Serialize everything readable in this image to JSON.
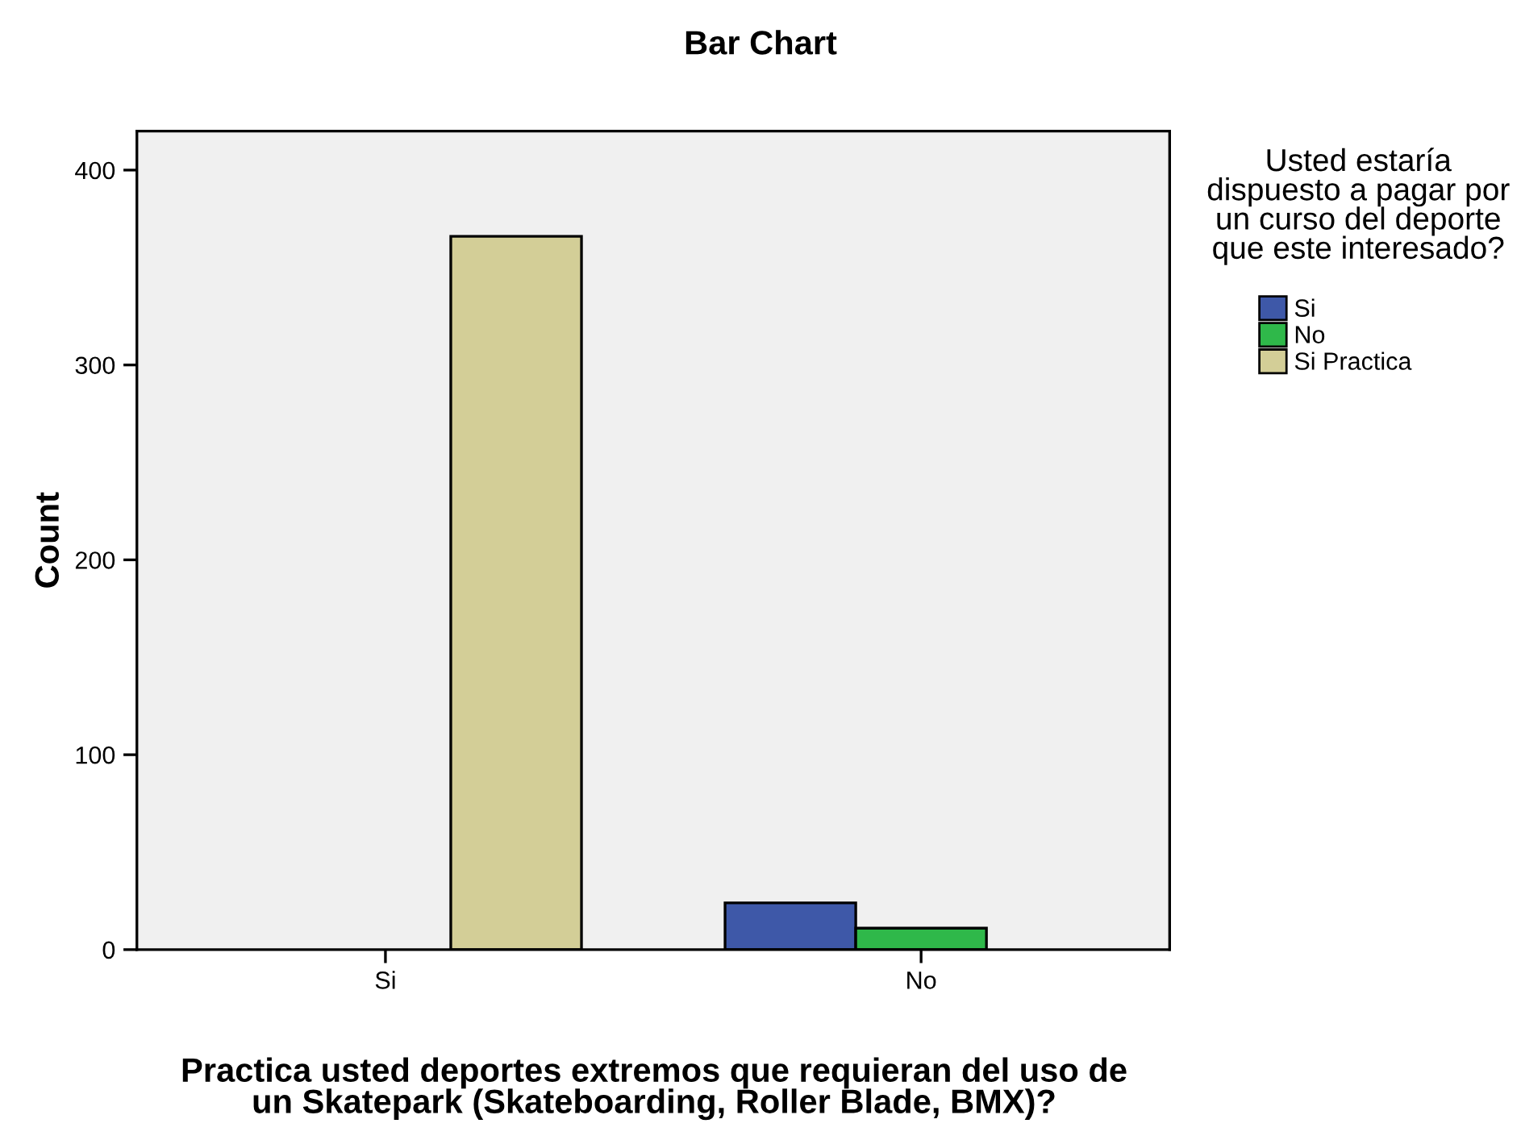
{
  "chart_data": {
    "type": "bar",
    "title": "Bar Chart",
    "xlabel": "Practica usted deportes extremos que requieran del uso de un Skatepark (Skateboarding, Roller Blade, BMX)?",
    "ylabel": "Count",
    "legend_title": "Usted estaría dispuesto a pagar por un curso del deporte que este interesado?",
    "categories": [
      "Si",
      "No"
    ],
    "series": [
      {
        "name": "Si",
        "color": "#3e58a8",
        "values": [
          null,
          24
        ]
      },
      {
        "name": "No",
        "color": "#2fb84a",
        "values": [
          null,
          11
        ]
      },
      {
        "name": "Si Practica",
        "color": "#d3ce97",
        "values": [
          366,
          null
        ]
      }
    ],
    "ylim": [
      0,
      420
    ],
    "yticks": [
      0,
      100,
      200,
      300,
      400
    ],
    "grid": false,
    "legend": "right"
  }
}
